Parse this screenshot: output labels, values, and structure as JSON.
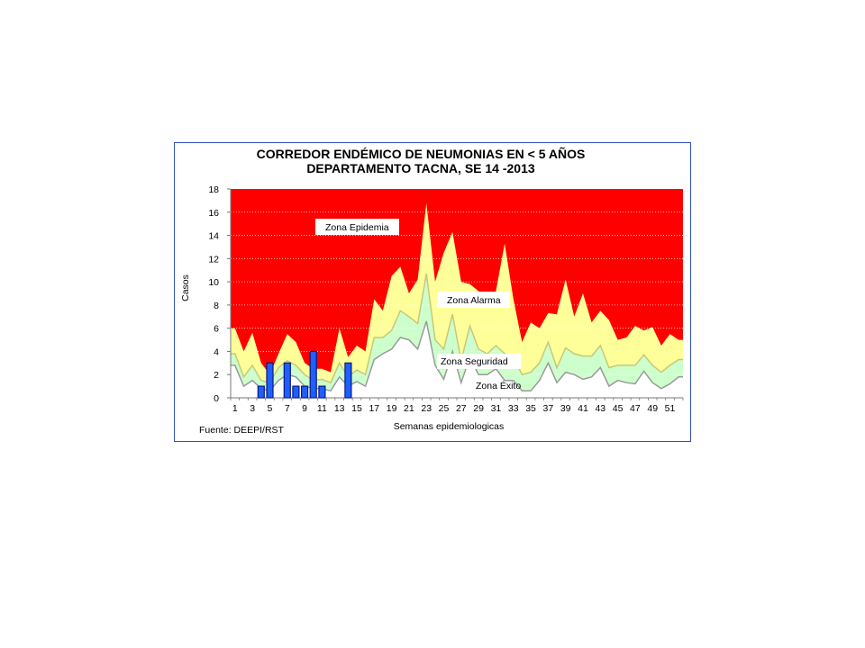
{
  "chart_data": {
    "type": "area",
    "title_line1": "CORREDOR ENDÉMICO DE NEUMONIAS EN < 5 AÑOS",
    "title_line2": "DEPARTAMENTO TACNA,  SE 14 -2013",
    "xlabel": "Semanas epidemiologicas",
    "ylabel": "Casos",
    "source": "Fuente: DEEPI/RST",
    "ylim": [
      0,
      18
    ],
    "yticks": [
      0,
      2,
      4,
      6,
      8,
      10,
      12,
      14,
      16,
      18
    ],
    "x_tick_labels": [
      1,
      3,
      5,
      7,
      9,
      11,
      13,
      15,
      17,
      19,
      21,
      23,
      25,
      27,
      29,
      31,
      33,
      35,
      37,
      39,
      41,
      43,
      45,
      47,
      49,
      51
    ],
    "x_weeks": 52,
    "grid": true,
    "zones": [
      {
        "name": "Zona Epidemia",
        "color": "#ff0000"
      },
      {
        "name": "Zona Alarma",
        "color": "#ffff99"
      },
      {
        "name": "Zona Seguridad",
        "color": "#ccffcc"
      },
      {
        "name": "Zona Éxito",
        "color": "#ffffff"
      }
    ],
    "series": [
      {
        "name": "epidemic_threshold",
        "values": [
          6.0,
          4.0,
          5.6,
          3.0,
          2.0,
          3.8,
          5.5,
          4.8,
          3.0,
          2.5,
          2.5,
          2.2,
          6.0,
          3.5,
          4.5,
          4.0,
          8.5,
          7.5,
          10.5,
          11.3,
          9.0,
          10.2,
          16.8,
          10.0,
          12.5,
          14.3,
          10.0,
          9.8,
          9.2,
          8.0,
          9.2,
          13.3,
          8.5,
          4.8,
          6.5,
          6.0,
          7.3,
          7.2,
          10.2,
          7.0,
          9.0,
          6.5,
          7.5,
          6.7,
          5.0,
          5.2,
          6.2,
          5.8,
          6.1,
          4.5,
          5.5,
          5.0
        ]
      },
      {
        "name": "alarm_threshold",
        "values": [
          3.8,
          1.8,
          2.8,
          1.5,
          1.3,
          2.6,
          3.2,
          2.8,
          2.0,
          1.5,
          1.6,
          1.3,
          3.0,
          1.8,
          2.4,
          2.0,
          5.2,
          5.2,
          5.8,
          7.5,
          7.0,
          6.4,
          10.7,
          5.0,
          4.2,
          7.2,
          3.2,
          6.2,
          4.2,
          3.8,
          4.5,
          3.8,
          3.5,
          2.0,
          2.2,
          3.0,
          4.8,
          2.6,
          4.3,
          3.8,
          3.6,
          3.6,
          4.5,
          2.6,
          2.8,
          2.8,
          2.8,
          3.7,
          2.8,
          2.2,
          2.8,
          3.3
        ]
      },
      {
        "name": "safety_threshold",
        "values": [
          2.8,
          1.0,
          1.5,
          0.8,
          0.6,
          1.5,
          2.0,
          1.8,
          1.0,
          0.8,
          0.8,
          0.6,
          1.8,
          1.0,
          1.4,
          1.0,
          3.3,
          3.8,
          4.2,
          5.2,
          5.0,
          4.2,
          6.6,
          2.8,
          1.6,
          4.0,
          1.3,
          3.5,
          2.0,
          2.0,
          2.5,
          1.5,
          1.5,
          0.6,
          0.6,
          1.5,
          3.0,
          1.3,
          2.2,
          2.0,
          1.6,
          1.8,
          2.6,
          1.0,
          1.5,
          1.3,
          1.2,
          2.3,
          1.3,
          0.8,
          1.2,
          1.8
        ]
      },
      {
        "name": "casos_2013",
        "values": [
          0,
          0,
          0,
          1,
          3,
          0,
          3,
          1,
          1,
          4,
          1,
          0,
          0,
          3
        ]
      }
    ],
    "annotations": [
      "Zona Epidemia",
      "Zona Alarma",
      "Zona Seguridad",
      "Zona Éxito"
    ],
    "colors": {
      "epidemia": "#ff0000",
      "alarma": "#ffff99",
      "seguridad": "#ccffcc",
      "exito": "#ffffff",
      "line_alarm": "#c8c878",
      "line_safety": "#9a9a9a",
      "bar_fill": "#1f5fff",
      "bar_stroke": "#0a1a80",
      "frame": "#2f4fc0"
    }
  }
}
